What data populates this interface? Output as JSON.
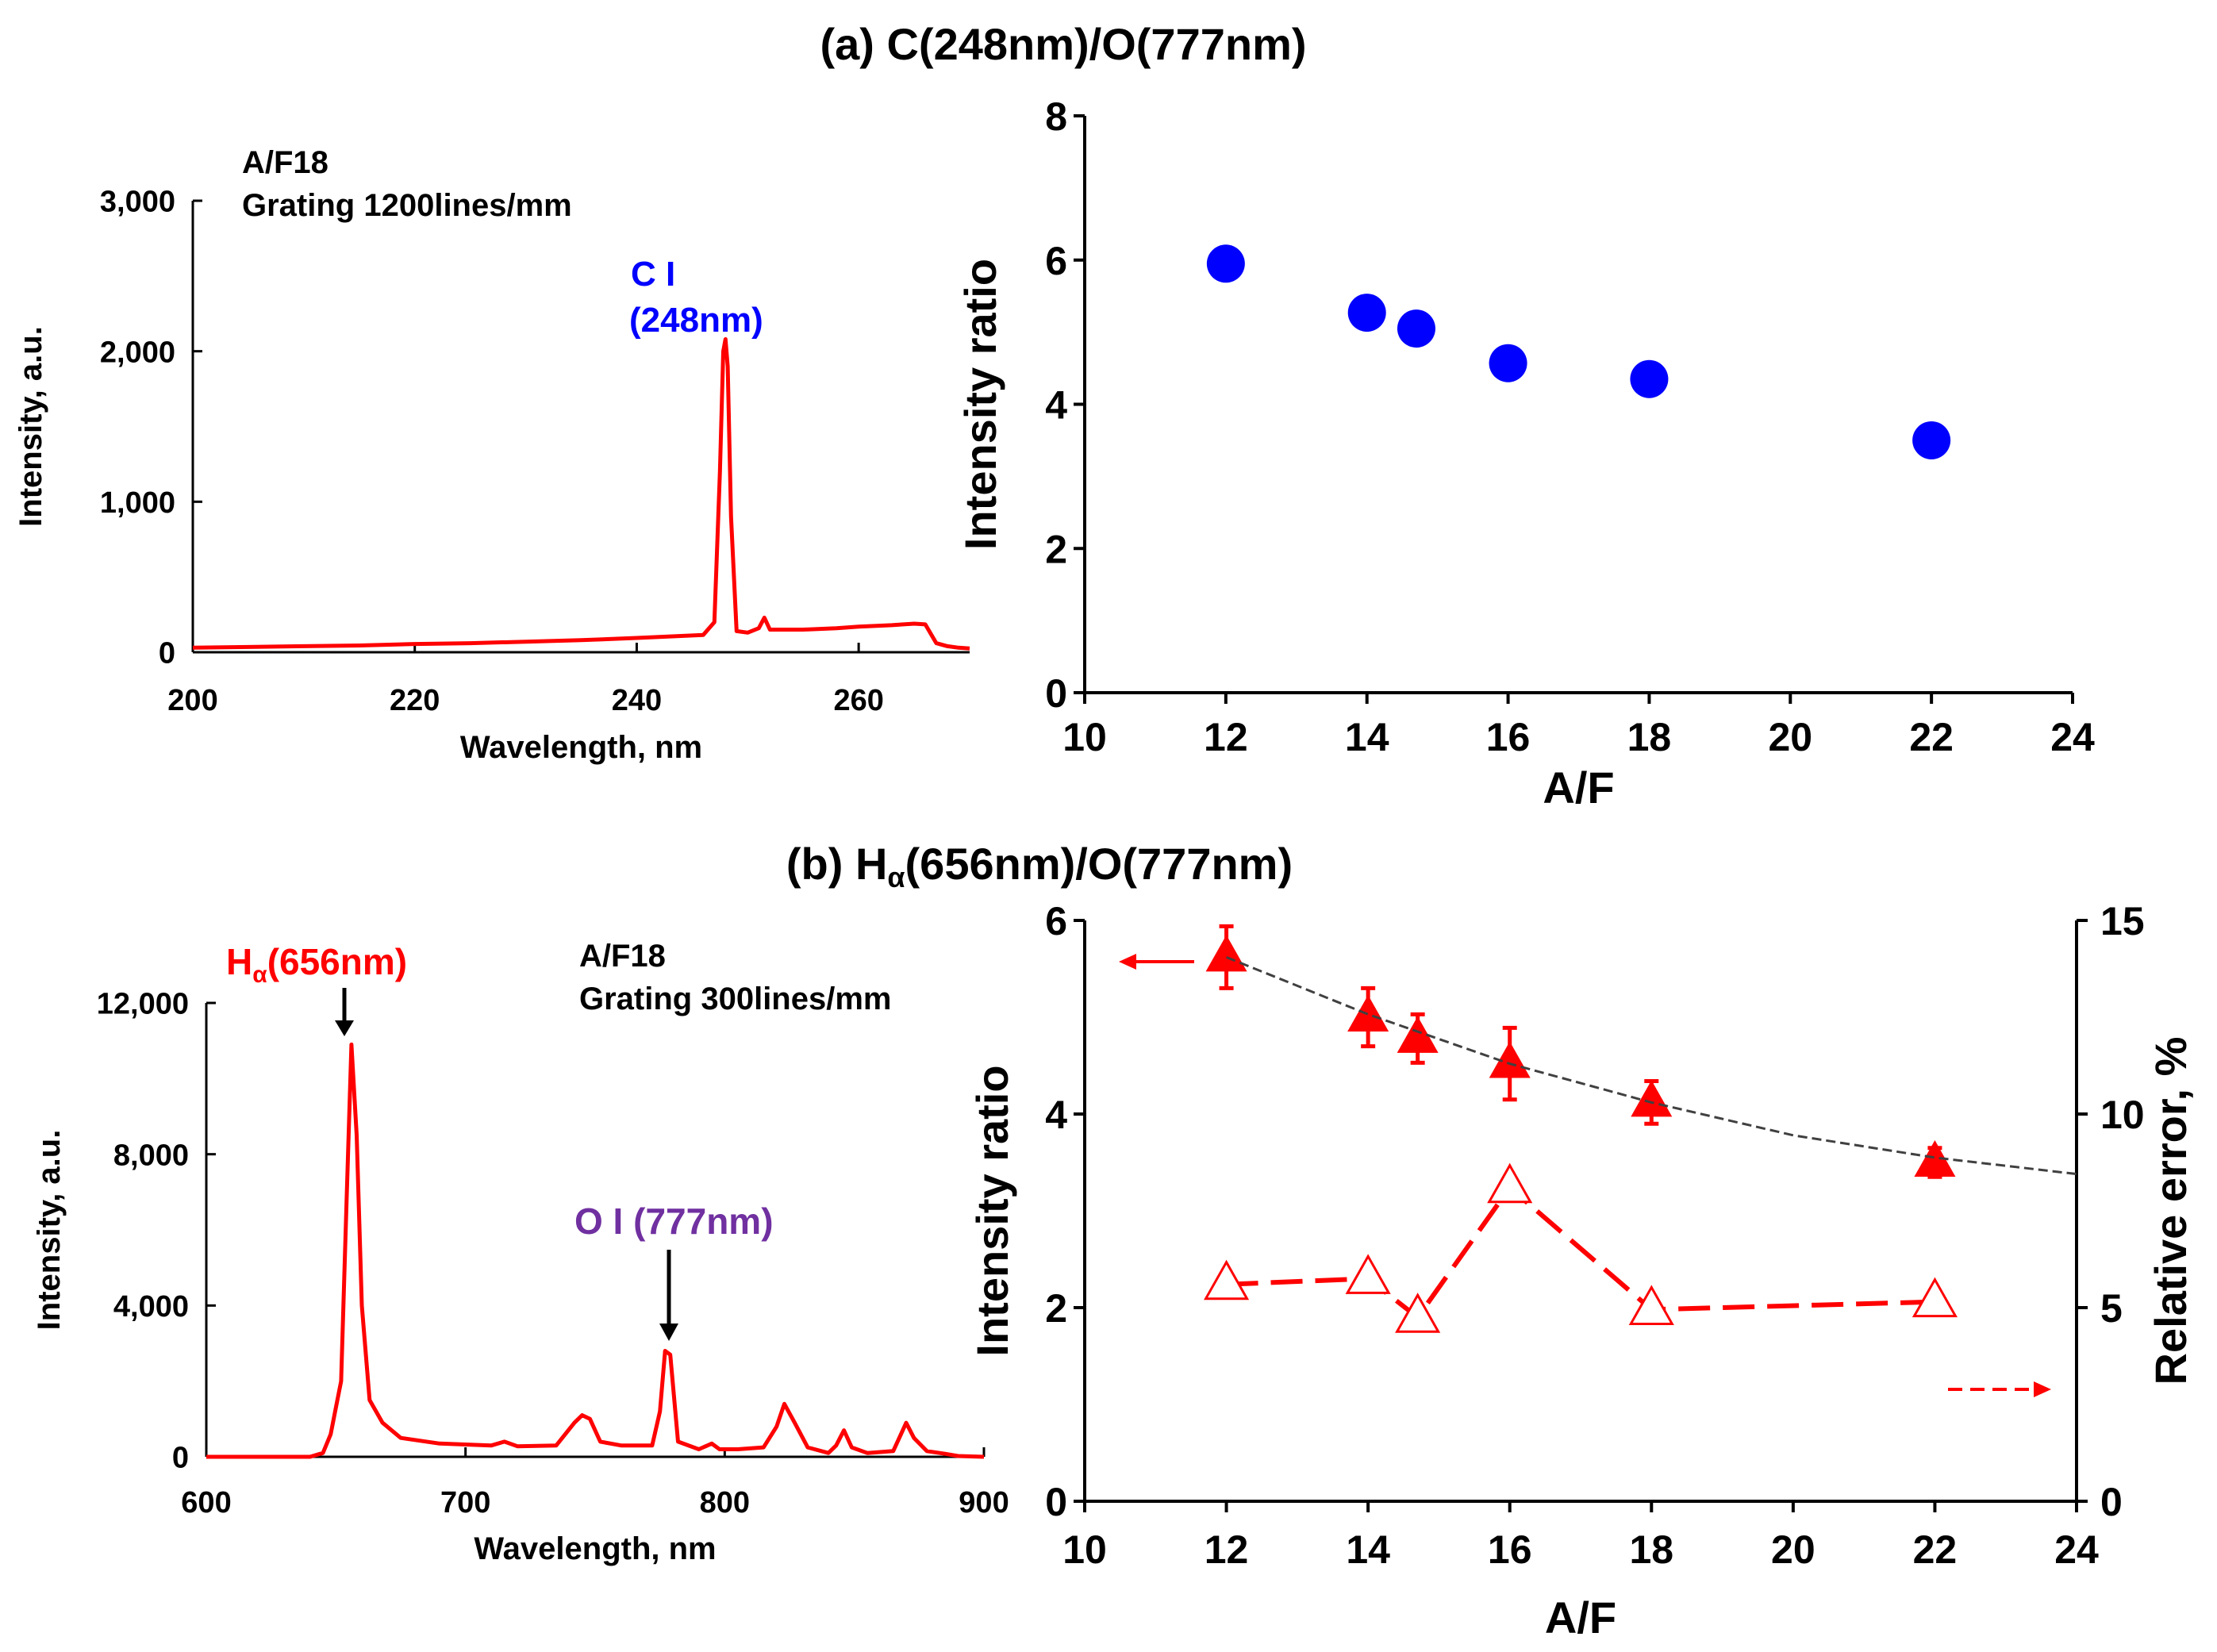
{
  "panel_a_title": "(a) C(248nm)/O(777nm)",
  "panel_b_title": "(b) H",
  "panel_b_title_sub": "α",
  "panel_b_title_rest": "(656nm)/O(777nm)",
  "colors": {
    "red": "#ff0000",
    "blue": "#0000ff",
    "purple": "#7030a0",
    "black": "#000000",
    "gray": "#404040"
  },
  "chart_data": [
    {
      "id": "spec-a",
      "type": "line",
      "title": "",
      "xlabel": "Wavelength, nm",
      "ylabel": "Intensity, a.u.",
      "xlim": [
        200,
        270
      ],
      "ylim": [
        0,
        3000
      ],
      "xticks": [
        200,
        220,
        240,
        260
      ],
      "xtick_labels": [
        "200",
        "220",
        "240",
        "260"
      ],
      "yticks": [
        0,
        1000,
        2000,
        3000
      ],
      "ytick_labels": [
        "0",
        "1,000",
        "2,000",
        "3,000"
      ],
      "info_line1": "A/F18",
      "info_line2": "Grating 1200lines/mm",
      "peak_label1": "C I",
      "peak_label2": "(248nm)",
      "series": [
        {
          "name": "spectrum",
          "color": "#ff0000",
          "x": [
            200,
            205,
            210,
            215,
            220,
            225,
            230,
            235,
            240,
            243,
            246,
            247,
            247.5,
            247.8,
            248,
            248.2,
            248.5,
            249,
            250,
            251,
            251.5,
            252,
            255,
            258,
            260,
            263,
            265,
            266,
            267,
            268,
            269,
            270
          ],
          "y": [
            30,
            35,
            40,
            45,
            55,
            60,
            70,
            80,
            95,
            105,
            115,
            200,
            1200,
            2000,
            2080,
            1900,
            900,
            140,
            130,
            160,
            230,
            150,
            150,
            160,
            170,
            180,
            190,
            185,
            60,
            40,
            30,
            25
          ]
        }
      ]
    },
    {
      "id": "ratio-a",
      "type": "scatter",
      "xlabel": "A/F",
      "ylabel": "Intensity ratio",
      "xlim": [
        10,
        24
      ],
      "ylim": [
        0,
        8
      ],
      "xticks": [
        10,
        12,
        14,
        16,
        18,
        20,
        22,
        24
      ],
      "xtick_labels": [
        "10",
        "12",
        "14",
        "16",
        "18",
        "20",
        "22",
        "24"
      ],
      "yticks": [
        0,
        2,
        4,
        6,
        8
      ],
      "ytick_labels": [
        "0",
        "2",
        "4",
        "6",
        "8"
      ],
      "series": [
        {
          "name": "C/O ratio",
          "color": "#0000ff",
          "x": [
            12,
            14,
            14.7,
            16,
            18,
            22
          ],
          "y": [
            5.95,
            5.27,
            5.05,
            4.57,
            4.35,
            3.5
          ]
        }
      ]
    },
    {
      "id": "spec-b",
      "type": "line",
      "xlabel": "Wavelength, nm",
      "ylabel": "Intensity, a.u.",
      "xlim": [
        600,
        900
      ],
      "ylim": [
        0,
        12000
      ],
      "xticks": [
        600,
        700,
        800,
        900
      ],
      "xtick_labels": [
        "600",
        "700",
        "800",
        "900"
      ],
      "yticks": [
        0,
        4000,
        8000,
        12000
      ],
      "ytick_labels": [
        "0",
        "4,000",
        "8,000",
        "12,000"
      ],
      "info_line1": "A/F18",
      "info_line2": "Grating 300lines/mm",
      "h_label_main": "H",
      "h_label_sub": "α",
      "h_label_rest": "(656nm)",
      "o_label": "O I (777nm)",
      "series": [
        {
          "name": "spectrum",
          "color": "#ff0000",
          "x": [
            600,
            640,
            645,
            648,
            650,
            652,
            654,
            656,
            658,
            660,
            663,
            668,
            675,
            690,
            710,
            715,
            720,
            735,
            742,
            745,
            748,
            752,
            760,
            772,
            775,
            777,
            779,
            782,
            790,
            795,
            798,
            805,
            815,
            820,
            823,
            827,
            832,
            840,
            843,
            846,
            849,
            855,
            865,
            868,
            870,
            873,
            878,
            885,
            890,
            900
          ],
          "y": [
            0,
            0,
            100,
            600,
            1300,
            2000,
            6500,
            10900,
            8500,
            4000,
            1500,
            900,
            500,
            350,
            300,
            400,
            280,
            300,
            900,
            1100,
            1000,
            400,
            300,
            300,
            1200,
            2800,
            2700,
            400,
            200,
            350,
            200,
            200,
            250,
            800,
            1400,
            900,
            250,
            100,
            300,
            700,
            250,
            100,
            150,
            600,
            900,
            500,
            150,
            80,
            20,
            0
          ]
        }
      ]
    },
    {
      "id": "ratio-b",
      "type": "scatter",
      "xlabel": "A/F",
      "ylabel": "Intensity ratio",
      "ylabel2": "Relative error, %",
      "xlim": [
        10,
        24
      ],
      "ylim": [
        0,
        6
      ],
      "y2lim": [
        0,
        15
      ],
      "xticks": [
        10,
        12,
        14,
        16,
        18,
        20,
        22,
        24
      ],
      "xtick_labels": [
        "10",
        "12",
        "14",
        "16",
        "18",
        "20",
        "22",
        "24"
      ],
      "yticks": [
        0,
        2,
        4,
        6
      ],
      "ytick_labels": [
        "0",
        "2",
        "4",
        "6"
      ],
      "y2ticks": [
        0,
        5,
        10,
        15
      ],
      "y2tick_labels": [
        "0",
        "5",
        "10",
        "15"
      ],
      "series": [
        {
          "name": "Intensity ratio",
          "axis": "left",
          "marker": "filled-triangle",
          "color": "#ff0000",
          "x": [
            12,
            14,
            14.7,
            16,
            18,
            22
          ],
          "y": [
            5.62,
            5.0,
            4.78,
            4.52,
            4.12,
            3.5
          ],
          "err": [
            0.32,
            0.3,
            0.25,
            0.37,
            0.22,
            0.15
          ]
        },
        {
          "name": "Relative error",
          "axis": "right",
          "marker": "open-triangle",
          "line": "dashed",
          "color": "#ff0000",
          "x": [
            12,
            14,
            14.7,
            16,
            18,
            22
          ],
          "y": [
            5.6,
            5.75,
            4.75,
            8.1,
            4.95,
            5.15
          ]
        },
        {
          "name": "fit",
          "axis": "left",
          "line": "dashed-thin",
          "color": "#404040",
          "x": [
            12,
            14,
            16,
            18,
            20,
            22,
            24
          ],
          "y": [
            5.62,
            5.03,
            4.52,
            4.12,
            3.78,
            3.55,
            3.38
          ]
        }
      ]
    }
  ]
}
